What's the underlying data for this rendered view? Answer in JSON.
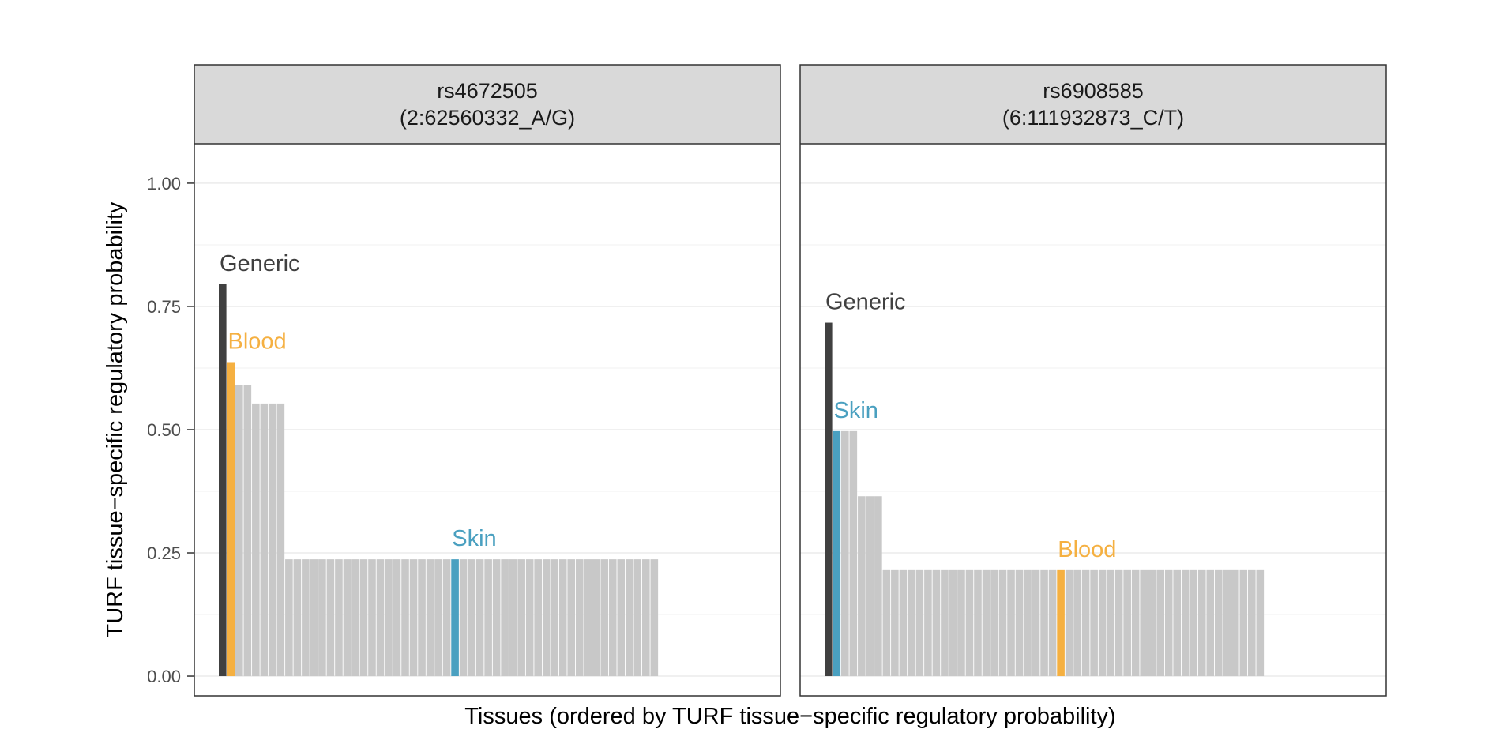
{
  "chart_data": {
    "type": "bar",
    "ylabel": "TURF tissue−specific regulatory probability",
    "xlabel": "Tissues (ordered by TURF tissue−specific regulatory probability)",
    "ylim": [
      -0.04,
      1.08
    ],
    "yticks": [
      {
        "value": 0.0,
        "label": "0.00"
      },
      {
        "value": 0.25,
        "label": "0.25"
      },
      {
        "value": 0.5,
        "label": "0.50"
      },
      {
        "value": 0.75,
        "label": "0.75"
      },
      {
        "value": 1.0,
        "label": "1.00"
      }
    ],
    "grid": true,
    "legend": "none",
    "colors": {
      "generic": "#404040",
      "blood": "#F5B041",
      "skin": "#4AA0C0",
      "other": "#C8C8C8",
      "strip": "#D9D9D9",
      "grid": "#EBEBEB",
      "text": "#333333",
      "axis_text": "#4D4D4D"
    },
    "panels": [
      {
        "title_line1": "rs4672505",
        "title_line2": "(2:62560332_A/G)",
        "values": [
          0.795,
          0.637,
          0.59,
          0.59,
          0.553,
          0.553,
          0.553,
          0.553,
          0.237,
          0.237,
          0.237,
          0.237,
          0.237,
          0.237,
          0.237,
          0.237,
          0.237,
          0.237,
          0.237,
          0.237,
          0.237,
          0.237,
          0.237,
          0.237,
          0.237,
          0.237,
          0.237,
          0.237,
          0.237,
          0.237,
          0.237,
          0.237,
          0.237,
          0.237,
          0.237,
          0.237,
          0.237,
          0.237,
          0.237,
          0.237,
          0.237,
          0.237,
          0.237,
          0.237,
          0.237,
          0.237,
          0.237,
          0.237,
          0.237,
          0.237,
          0.237,
          0.237,
          0.237
        ],
        "highlights": [
          {
            "index": 0,
            "label": "Generic",
            "color_key": "generic"
          },
          {
            "index": 1,
            "label": "Blood",
            "color_key": "blood"
          },
          {
            "index": 28,
            "label": "Skin",
            "color_key": "skin"
          }
        ]
      },
      {
        "title_line1": "rs6908585",
        "title_line2": "(6:111932873_C/T)",
        "values": [
          0.717,
          0.497,
          0.497,
          0.497,
          0.365,
          0.365,
          0.365,
          0.215,
          0.215,
          0.215,
          0.215,
          0.215,
          0.215,
          0.215,
          0.215,
          0.215,
          0.215,
          0.215,
          0.215,
          0.215,
          0.215,
          0.215,
          0.215,
          0.215,
          0.215,
          0.215,
          0.215,
          0.215,
          0.215,
          0.215,
          0.215,
          0.215,
          0.215,
          0.215,
          0.215,
          0.215,
          0.215,
          0.215,
          0.215,
          0.215,
          0.215,
          0.215,
          0.215,
          0.215,
          0.215,
          0.215,
          0.215,
          0.215,
          0.215,
          0.215,
          0.215,
          0.215,
          0.215
        ],
        "highlights": [
          {
            "index": 0,
            "label": "Generic",
            "color_key": "generic"
          },
          {
            "index": 1,
            "label": "Skin",
            "color_key": "skin"
          },
          {
            "index": 28,
            "label": "Blood",
            "color_key": "blood"
          }
        ]
      }
    ]
  }
}
